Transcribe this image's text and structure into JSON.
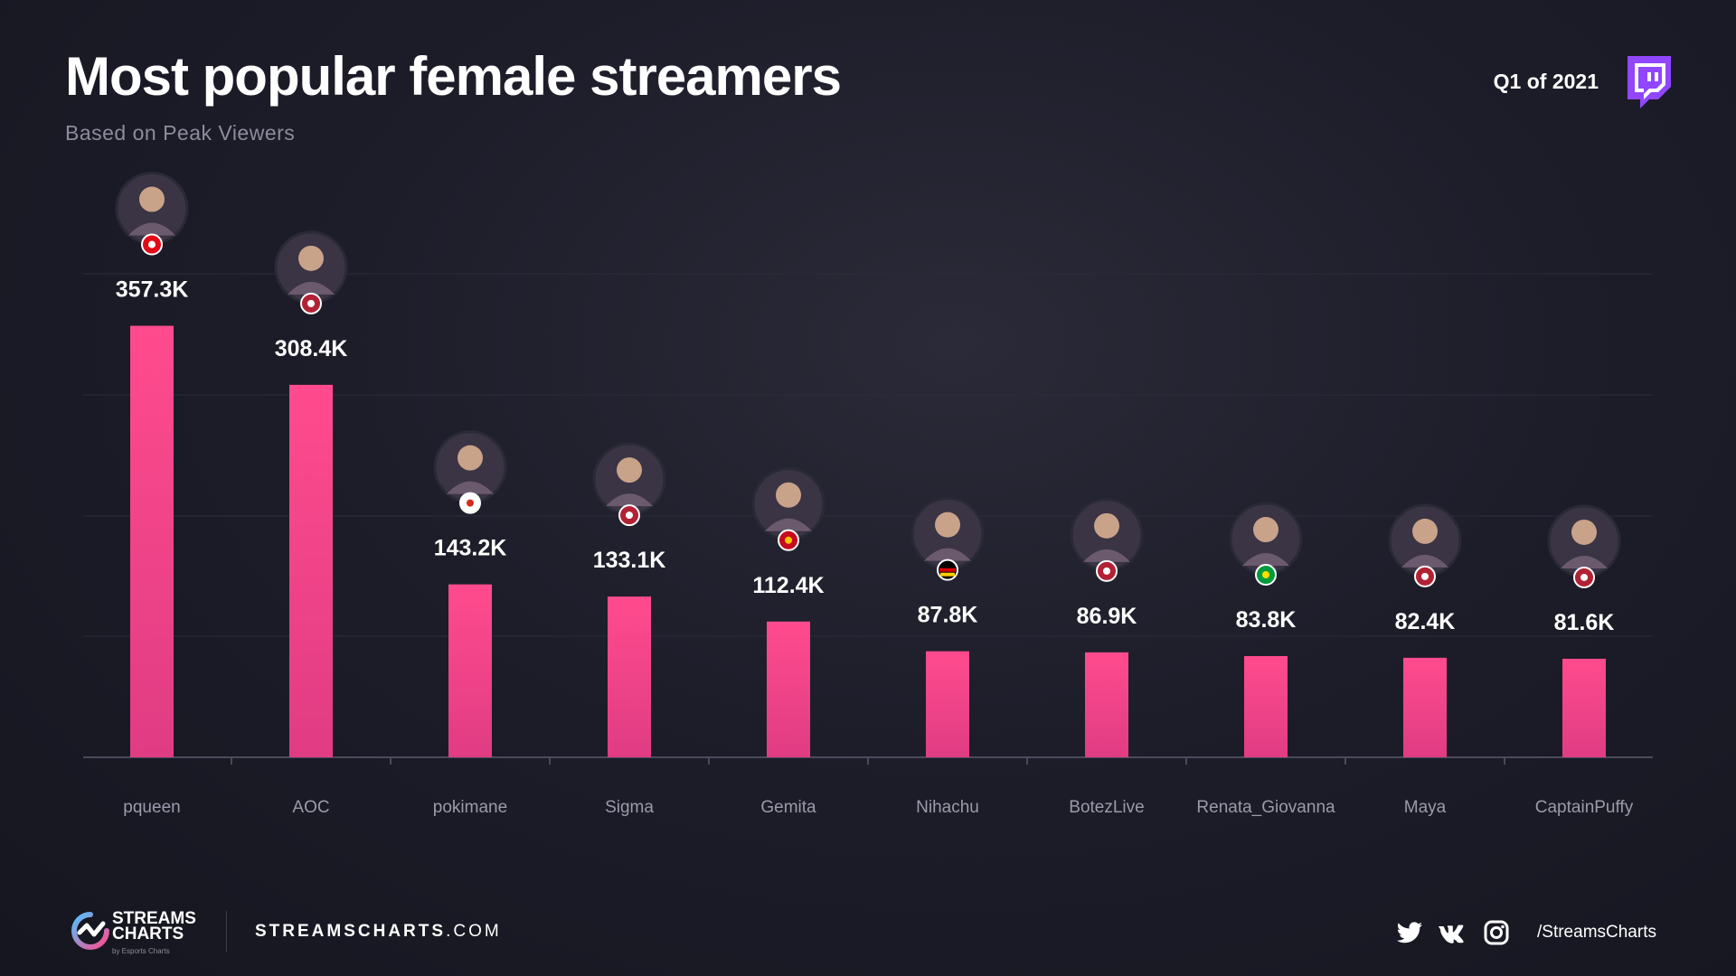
{
  "header": {
    "title": "Most popular female streamers",
    "subtitle": "Based on Peak Viewers",
    "period": "Q1 of 2021"
  },
  "footer": {
    "brand_line1": "STREAMS",
    "brand_line2": "CHARTS",
    "brand_tagline": "by Esports Charts",
    "site_bold": "STREAMSCHARTS",
    "site_rest": ".COM",
    "handle": "/StreamsCharts",
    "social_icons": [
      "twitter-icon",
      "vk-icon",
      "instagram-icon"
    ]
  },
  "colors": {
    "bar": "#ff4b8d",
    "bar_bottom": "#e03c84",
    "background": "#1a1a26",
    "twitch": "#9146ff"
  },
  "chart_data": {
    "type": "bar",
    "categories": [
      "pqueen",
      "AOC",
      "pokimane",
      "Sigma",
      "Gemita",
      "Nihachu",
      "BotezLive",
      "Renata_Giovanna",
      "Maya",
      "CaptainPuffy"
    ],
    "values": [
      357.3,
      308.4,
      143.2,
      133.1,
      112.4,
      87.8,
      86.9,
      83.8,
      82.4,
      81.6
    ],
    "value_labels": [
      "357.3K",
      "308.4K",
      "143.2K",
      "133.1K",
      "112.4K",
      "87.8K",
      "86.9K",
      "83.8K",
      "82.4K",
      "81.6K"
    ],
    "countries": [
      "turkey",
      "usa",
      "canada",
      "usa",
      "spain",
      "germany",
      "usa",
      "brazil",
      "usa",
      "usa"
    ],
    "title": "Most popular female streamers",
    "xlabel": "",
    "ylabel": "",
    "ylim": [
      0,
      440
    ],
    "grid": true,
    "legend": "none"
  }
}
